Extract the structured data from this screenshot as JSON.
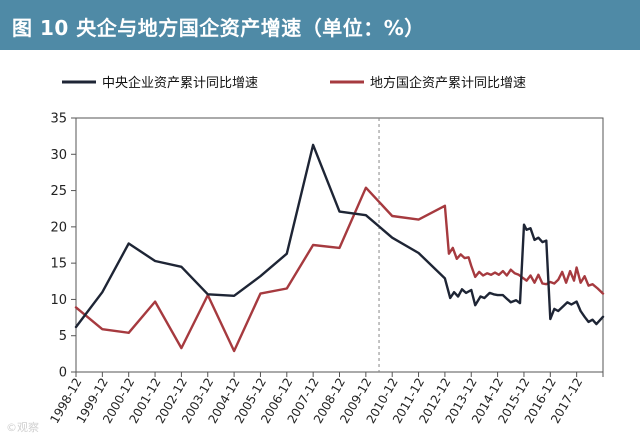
{
  "header": {
    "title": "图 10  央企与地方国企资产增速（单位：%）"
  },
  "colors": {
    "header_bg": "#4f8aa6",
    "central": "#1e2535",
    "local": "#a63a3f",
    "frame": "#555555",
    "divider": "#888888"
  },
  "watermark": "©观察",
  "chart_data": {
    "type": "line",
    "series": [
      {
        "name": "中央企业资产累计同比增速",
        "points": [
          [
            0,
            6.2
          ],
          [
            1,
            11
          ],
          [
            2,
            17.7
          ],
          [
            3,
            15.3
          ],
          [
            4,
            14.5
          ],
          [
            5,
            10.7
          ],
          [
            6,
            10.5
          ],
          [
            7,
            13.2
          ],
          [
            8,
            16.3
          ],
          [
            9,
            31.3
          ],
          [
            10,
            22.1
          ],
          [
            11,
            21.6
          ],
          [
            12,
            18.5
          ],
          [
            13,
            16.4
          ],
          [
            14,
            12.9
          ],
          [
            14.2,
            10.2
          ],
          [
            14.35,
            11
          ],
          [
            14.5,
            10.4
          ],
          [
            14.65,
            11.4
          ],
          [
            14.8,
            10.9
          ],
          [
            15,
            11.3
          ],
          [
            15.15,
            9.2
          ],
          [
            15.35,
            10.4
          ],
          [
            15.5,
            10.2
          ],
          [
            15.7,
            10.9
          ],
          [
            15.85,
            10.7
          ],
          [
            16,
            10.6
          ],
          [
            16.2,
            10.6
          ],
          [
            16.35,
            10.1
          ],
          [
            16.5,
            9.6
          ],
          [
            16.7,
            9.9
          ],
          [
            16.85,
            9.5
          ],
          [
            17,
            20.3
          ],
          [
            17.1,
            19.6
          ],
          [
            17.25,
            19.8
          ],
          [
            17.4,
            18.2
          ],
          [
            17.55,
            18.5
          ],
          [
            17.7,
            17.9
          ],
          [
            17.85,
            18.1
          ],
          [
            18,
            7.3
          ],
          [
            18.15,
            8.7
          ],
          [
            18.3,
            8.4
          ],
          [
            18.5,
            9.1
          ],
          [
            18.65,
            9.6
          ],
          [
            18.8,
            9.3
          ],
          [
            19,
            9.7
          ],
          [
            19.15,
            8.4
          ],
          [
            19.3,
            7.6
          ],
          [
            19.45,
            6.9
          ],
          [
            19.6,
            7.2
          ],
          [
            19.75,
            6.6
          ],
          [
            20,
            7.6
          ]
        ]
      },
      {
        "name": "地方国企资产累计同比增速",
        "points": [
          [
            0,
            8.9
          ],
          [
            1,
            5.9
          ],
          [
            2,
            5.4
          ],
          [
            3,
            9.7
          ],
          [
            4,
            3.3
          ],
          [
            5,
            10.6
          ],
          [
            6,
            2.9
          ],
          [
            7,
            10.8
          ],
          [
            8,
            11.5
          ],
          [
            9,
            17.5
          ],
          [
            10,
            17.1
          ],
          [
            11,
            25.4
          ],
          [
            12,
            21.5
          ],
          [
            13,
            21
          ],
          [
            14,
            22.9
          ],
          [
            14.15,
            16.3
          ],
          [
            14.3,
            17.1
          ],
          [
            14.45,
            15.6
          ],
          [
            14.6,
            16.2
          ],
          [
            14.75,
            15.7
          ],
          [
            14.9,
            15.8
          ],
          [
            15,
            14.6
          ],
          [
            15.15,
            13.1
          ],
          [
            15.3,
            13.8
          ],
          [
            15.45,
            13.3
          ],
          [
            15.6,
            13.6
          ],
          [
            15.75,
            13.4
          ],
          [
            15.9,
            13.7
          ],
          [
            16.05,
            13.4
          ],
          [
            16.2,
            13.9
          ],
          [
            16.35,
            13.3
          ],
          [
            16.5,
            14.1
          ],
          [
            16.65,
            13.6
          ],
          [
            16.8,
            13.4
          ],
          [
            16.95,
            13
          ],
          [
            17.1,
            12.6
          ],
          [
            17.25,
            13.3
          ],
          [
            17.4,
            12.3
          ],
          [
            17.55,
            13.4
          ],
          [
            17.7,
            12.2
          ],
          [
            17.85,
            12.1
          ],
          [
            18,
            12.4
          ],
          [
            18.15,
            12.2
          ],
          [
            18.3,
            12.7
          ],
          [
            18.45,
            13.8
          ],
          [
            18.6,
            12.3
          ],
          [
            18.75,
            13.9
          ],
          [
            18.9,
            12.6
          ],
          [
            19,
            14.4
          ],
          [
            19.15,
            12.3
          ],
          [
            19.3,
            13.2
          ],
          [
            19.45,
            11.9
          ],
          [
            19.6,
            12.1
          ],
          [
            19.8,
            11.5
          ],
          [
            20,
            10.8
          ]
        ]
      }
    ],
    "x_categories": [
      "1998-12",
      "1999-12",
      "2000-12",
      "2001-12",
      "2002-12",
      "2003-12",
      "2004-12",
      "2005-12",
      "2006-12",
      "2007-12",
      "2008-12",
      "2009-12",
      "2010-12",
      "2011-12",
      "2012-12",
      "2013-12",
      "2014-12",
      "2015-12",
      "2016-12",
      "2017-12"
    ],
    "xlim": [
      0,
      20
    ],
    "yticks": [
      0,
      5,
      10,
      15,
      20,
      25,
      30,
      35
    ],
    "ylim": [
      0,
      35
    ],
    "divider_at": 11.5,
    "legend_position": "top",
    "grid": false
  }
}
